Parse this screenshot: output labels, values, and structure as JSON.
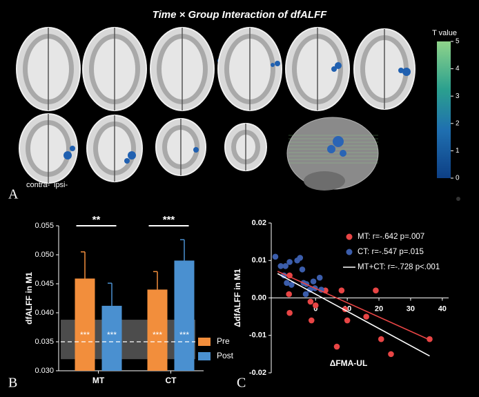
{
  "figure_title": "Time × Group Interaction of dfALFF",
  "panel_labels": [
    "A",
    "B",
    "C"
  ],
  "hemisphere_labels": [
    "contra-",
    "ipsi-"
  ],
  "colorbar": {
    "label": "T value",
    "lim": [
      0,
      5
    ],
    "ticks": [
      0,
      1,
      2,
      3,
      4,
      5
    ]
  },
  "chart_data": [
    {
      "type": "bar",
      "ylabel": "dfALFF in M1",
      "categories": [
        "MT",
        "CT"
      ],
      "series": [
        {
          "name": "Pre",
          "color": "#f28e3c",
          "values": [
            0.0459,
            0.044
          ],
          "errors": [
            0.0046,
            0.0031
          ],
          "inner_labels": [
            "***",
            "***"
          ]
        },
        {
          "name": "Post",
          "color": "#4a90d0",
          "values": [
            0.0412,
            0.049
          ],
          "errors": [
            0.0039,
            0.0036
          ],
          "inner_labels": [
            "***",
            "***"
          ]
        }
      ],
      "significance": [
        "**",
        "***"
      ],
      "reference_line": 0.035,
      "highlight_range": [
        0.032,
        0.0388
      ],
      "ylim": [
        0.03,
        0.055
      ],
      "yticks": [
        {
          "value": 0.03,
          "label": "0.030"
        },
        {
          "value": 0.035,
          "label": "0.035"
        },
        {
          "value": 0.04,
          "label": "0.040"
        },
        {
          "value": 0.045,
          "label": "0.045"
        },
        {
          "value": 0.05,
          "label": "0.050"
        },
        {
          "value": 0.055,
          "label": "0.055"
        }
      ],
      "legend": "bottom-right"
    },
    {
      "type": "scatter",
      "xlabel": "ΔFMA-UL",
      "ylabel": "ΔdfALFF in M1",
      "series": [
        {
          "name": "MT: r=-.642  p=.007",
          "color": "#e84545",
          "x": [
            -8.2,
            -8.4,
            -8.2,
            -1.6,
            0,
            -1.3,
            3.1,
            8.2,
            9.3,
            10,
            6.7,
            19,
            16,
            20.7,
            23.8,
            36
          ],
          "y": [
            0.006,
            0.001,
            -0.004,
            -0.001,
            -0.002,
            -0.006,
            0.002,
            0.002,
            -0.003,
            -0.006,
            -0.013,
            0.002,
            -0.005,
            -0.011,
            -0.015,
            -0.011
          ]
        },
        {
          "name": "CT: r=-.547  p=.015",
          "color": "#3b5dab",
          "x": [
            -12.7,
            -11,
            -9.5,
            -8.2,
            -10,
            -9.1,
            -7.6,
            -5.8,
            -4.9,
            -4.2,
            -3.8,
            -3.1,
            -2.9,
            -0.7,
            -0.2,
            1.3,
            1.8,
            -1.8
          ],
          "y": [
            0.011,
            0.0085,
            0.0085,
            0.0096,
            0.006,
            0.004,
            0.0035,
            0.01,
            0.0107,
            0.0076,
            0.004,
            0.001,
            0.0037,
            0.0044,
            0.0026,
            0.0054,
            0.0022,
            0.0022
          ]
        }
      ],
      "fit_lines": [
        {
          "color": "#e84545",
          "x": [
            -12,
            36
          ],
          "y": [
            0.0071,
            -0.0112
          ]
        },
        {
          "name": "MT+CT: r=-.728 p<.001",
          "color": "#ffffff",
          "x": [
            -12,
            36
          ],
          "y": [
            0.0065,
            -0.0155
          ]
        }
      ],
      "xlim": [
        -14,
        42
      ],
      "xticks": [
        0,
        10,
        20,
        30,
        40
      ],
      "ylim": [
        -0.02,
        0.02
      ],
      "yticks": [
        {
          "value": -0.02,
          "label": "-0.02"
        },
        {
          "value": -0.01,
          "label": "-0.01"
        },
        {
          "value": 0,
          "label": "0.00"
        },
        {
          "value": 0.01,
          "label": "0.01"
        },
        {
          "value": 0.02,
          "label": "0.02"
        }
      ],
      "legend": "top-right"
    }
  ]
}
